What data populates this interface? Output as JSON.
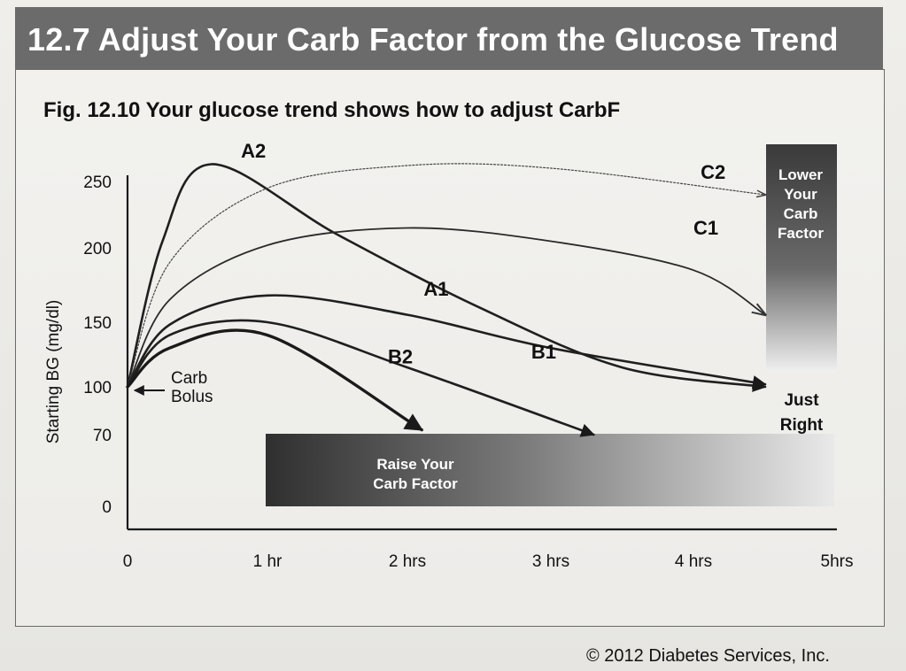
{
  "header": {
    "title": "12.7 Adjust Your Carb Factor from the Glucose Trend"
  },
  "figure": {
    "title": "Fig. 12.10  Your glucose trend shows how to adjust CarbF"
  },
  "footer": {
    "copyright": "© 2012 Diabetes Services, Inc."
  },
  "colors": {
    "header_bg": "#6b6b6b",
    "dark_box": "#3a3a3a",
    "line": "#222222"
  },
  "chart_data": {
    "type": "line",
    "title": "Your glucose trend shows how to adjust CarbF",
    "ylabel": "Starting BG (mg/dl)",
    "xlabel": "",
    "x_ticks": [
      {
        "value": 0,
        "label": "0"
      },
      {
        "value": 1,
        "label": "1 hr"
      },
      {
        "value": 2,
        "label": "2 hrs"
      },
      {
        "value": 3,
        "label": "3 hrs"
      },
      {
        "value": 4,
        "label": "4 hrs"
      },
      {
        "value": 5,
        "label": "5hrs"
      }
    ],
    "y_ticks": [
      {
        "value": 0,
        "label": "0"
      },
      {
        "value": 70,
        "label": "70"
      },
      {
        "value": 100,
        "label": "100"
      },
      {
        "value": 150,
        "label": "150"
      },
      {
        "value": 200,
        "label": "200"
      },
      {
        "value": 250,
        "label": "250"
      }
    ],
    "xlim": [
      0,
      5
    ],
    "grid": false,
    "series": [
      {
        "name": "A2",
        "points": [
          [
            0,
            100
          ],
          [
            0.25,
            205
          ],
          [
            0.6,
            263
          ],
          [
            1.5,
            210
          ],
          [
            2.5,
            160
          ],
          [
            3.5,
            115
          ],
          [
            4.5,
            100
          ]
        ]
      },
      {
        "name": "C2",
        "points": [
          [
            0,
            100
          ],
          [
            0.3,
            190
          ],
          [
            1,
            245
          ],
          [
            2,
            262
          ],
          [
            3,
            260
          ],
          [
            4.5,
            240
          ]
        ]
      },
      {
        "name": "C1",
        "points": [
          [
            0,
            100
          ],
          [
            0.3,
            165
          ],
          [
            1,
            202
          ],
          [
            2,
            215
          ],
          [
            3,
            205
          ],
          [
            4,
            185
          ],
          [
            4.5,
            155
          ]
        ]
      },
      {
        "name": "A1",
        "points": [
          [
            0,
            100
          ],
          [
            0.3,
            148
          ],
          [
            1,
            168
          ],
          [
            2,
            155
          ],
          [
            3,
            130
          ],
          [
            4.5,
            102
          ]
        ]
      },
      {
        "name": "B1",
        "points": [
          [
            0,
            100
          ],
          [
            0.3,
            140
          ],
          [
            1,
            150
          ],
          [
            2,
            115
          ],
          [
            3.3,
            70
          ]
        ]
      },
      {
        "name": "B2",
        "points": [
          [
            0,
            100
          ],
          [
            0.3,
            130
          ],
          [
            1,
            140
          ],
          [
            2.1,
            73
          ]
        ]
      }
    ],
    "annotations": {
      "carb_bolus": [
        "Carb",
        "Bolus"
      ],
      "just_right": [
        "Just",
        "Right"
      ],
      "raise_box": [
        "Raise Your",
        "Carb Factor"
      ],
      "lower_box": [
        "Lower",
        "Your",
        "Carb",
        "Factor"
      ]
    }
  }
}
